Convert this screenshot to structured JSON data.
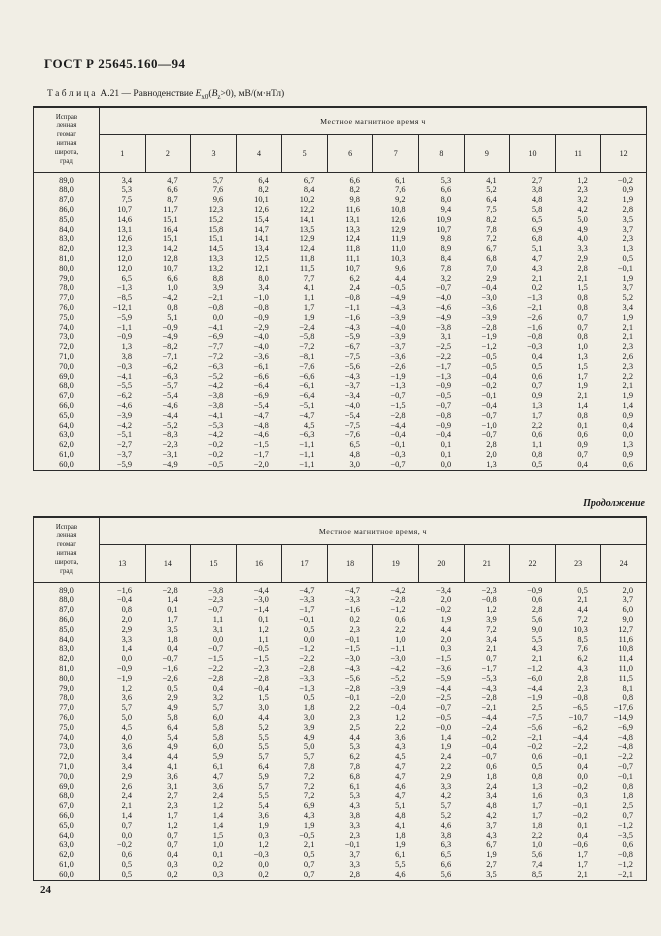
{
  "page": {
    "doc_number": "ГОСТ Р 25645.160—94",
    "page_number": "24",
    "continuation_label": "Продолжение"
  },
  "caption": {
    "word": "Таблица",
    "number": "А.21",
    "dash": "—",
    "prefix": "Равноденствие",
    "e": "E",
    "e_sub": "x0",
    "b_open": "(",
    "b": "B",
    "b_sub": "z",
    "tail": ">0), мВ/(м·нТл)"
  },
  "tables": [
    {
      "row_header_lines": [
        "Исправ",
        "ленная",
        "геомаг",
        "нитная",
        "широта,",
        "град"
      ],
      "group_header": "Местное магнитное время ч",
      "hours": [
        "1",
        "2",
        "3",
        "4",
        "5",
        "6",
        "7",
        "8",
        "9",
        "10",
        "11",
        "12"
      ],
      "rows": [
        {
          "lat": "89,0",
          "values": [
            "3,4",
            "4,7",
            "5,7",
            "6,4",
            "6,7",
            "6,6",
            "6,1",
            "5,3",
            "4,1",
            "2,7",
            "1,2",
            "−0,2"
          ]
        },
        {
          "lat": "88,0",
          "values": [
            "5,3",
            "6,6",
            "7,6",
            "8,2",
            "8,4",
            "8,2",
            "7,6",
            "6,6",
            "5,2",
            "3,8",
            "2,3",
            "0,9"
          ]
        },
        {
          "lat": "87,0",
          "values": [
            "7,5",
            "8,7",
            "9,6",
            "10,1",
            "10,2",
            "9,8",
            "9,2",
            "8,0",
            "6,4",
            "4,8",
            "3,2",
            "1,9"
          ]
        },
        {
          "lat": "86,0",
          "values": [
            "10,7",
            "11,7",
            "12,3",
            "12,6",
            "12,2",
            "11,6",
            "10,8",
            "9,4",
            "7,5",
            "5,8",
            "4,2",
            "2,8"
          ]
        },
        {
          "lat": "85,0",
          "values": [
            "14,6",
            "15,1",
            "15,2",
            "15,4",
            "14,1",
            "13,1",
            "12,6",
            "10,9",
            "8,2",
            "6,5",
            "5,0",
            "3,5"
          ]
        },
        {
          "lat": "84,0",
          "values": [
            "13,1",
            "16,4",
            "15,8",
            "14,7",
            "13,5",
            "13,3",
            "12,9",
            "10,7",
            "7,8",
            "6,9",
            "4,9",
            "3,7"
          ]
        },
        {
          "lat": "83,0",
          "values": [
            "12,6",
            "15,1",
            "15,1",
            "14,1",
            "12,9",
            "12,4",
            "11,9",
            "9,8",
            "7,2",
            "6,8",
            "4,0",
            "2,3"
          ]
        },
        {
          "lat": "82,0",
          "values": [
            "12,3",
            "14,2",
            "14,5",
            "13,4",
            "12,4",
            "11,8",
            "11,0",
            "8,9",
            "6,7",
            "5,1",
            "3,3",
            "1,3"
          ]
        },
        {
          "lat": "81,0",
          "values": [
            "12,0",
            "12,8",
            "13,3",
            "12,5",
            "11,8",
            "11,1",
            "10,3",
            "8,4",
            "6,8",
            "4,7",
            "2,9",
            "0,5"
          ]
        },
        {
          "lat": "80,0",
          "values": [
            "12,0",
            "10,7",
            "13,2",
            "12,1",
            "11,5",
            "10,7",
            "9,6",
            "7,8",
            "7,0",
            "4,3",
            "2,8",
            "−0,1"
          ]
        },
        {
          "lat": "79,0",
          "values": [
            "6,5",
            "6,6",
            "8,8",
            "8,0",
            "7,7",
            "6,2",
            "4,4",
            "3,2",
            "2,9",
            "2,1",
            "2,1",
            "1,9"
          ]
        },
        {
          "lat": "78,0",
          "values": [
            "−1,3",
            "1,0",
            "3,9",
            "3,4",
            "4,1",
            "2,4",
            "−0,5",
            "−0,7",
            "−0,4",
            "0,2",
            "1,5",
            "3,7"
          ]
        },
        {
          "lat": "77,0",
          "values": [
            "−8,5",
            "−4,2",
            "−2,1",
            "−1,0",
            "1,1",
            "−0,8",
            "−4,9",
            "−4,0",
            "−3,0",
            "−1,3",
            "0,8",
            "5,2"
          ]
        },
        {
          "lat": "76,0",
          "values": [
            "−12,1",
            "0,8",
            "−0,8",
            "−0,8",
            "1,7",
            "−1,1",
            "−4,3",
            "−4,6",
            "−3,6",
            "−2,1",
            "0,8",
            "3,4"
          ]
        },
        {
          "lat": "75,0",
          "values": [
            "−5,9",
            "5,1",
            "0,0",
            "−0,9",
            "1,9",
            "−1,6",
            "−3,9",
            "−4,9",
            "−3,9",
            "−2,6",
            "0,7",
            "1,9"
          ]
        },
        {
          "lat": "74,0",
          "values": [
            "−1,1",
            "−0,9",
            "−4,1",
            "−2,9",
            "−2,4",
            "−4,3",
            "−4,0",
            "−3,8",
            "−2,8",
            "−1,6",
            "0,7",
            "2,1"
          ]
        },
        {
          "lat": "73,0",
          "values": [
            "−0,9",
            "−4,9",
            "−6,9",
            "−4,0",
            "−5,8",
            "−5,9",
            "−3,9",
            "3,1",
            "−1,9",
            "−0,8",
            "0,8",
            "2,1"
          ]
        },
        {
          "lat": "72,0",
          "values": [
            "1,3",
            "−8,2",
            "−7,7",
            "−4,0",
            "−7,2",
            "−6,7",
            "−3,7",
            "−2,5",
            "−1,2",
            "−0,3",
            "1,0",
            "2,3"
          ]
        },
        {
          "lat": "71,0",
          "values": [
            "3,8",
            "−7,1",
            "−7,2",
            "−3,6",
            "−8,1",
            "−7,5",
            "−3,6",
            "−2,2",
            "−0,5",
            "0,4",
            "1,3",
            "2,6"
          ]
        },
        {
          "lat": "70,0",
          "values": [
            "−0,3",
            "−6,2",
            "−6,3",
            "−6,1",
            "−7,6",
            "−5,6",
            "−2,6",
            "−1,7",
            "−0,5",
            "0,5",
            "1,5",
            "2,3"
          ]
        },
        {
          "lat": "69,0",
          "values": [
            "−4,1",
            "−6,3",
            "−5,2",
            "−6,6",
            "−6,6",
            "−4,3",
            "−1,9",
            "−1,3",
            "−0,4",
            "0,6",
            "1,7",
            "2,2"
          ]
        },
        {
          "lat": "68,0",
          "values": [
            "−5,5",
            "−5,7",
            "−4,2",
            "−6,4",
            "−6,1",
            "−3,7",
            "−1,3",
            "−0,9",
            "−0,2",
            "0,7",
            "1,9",
            "2,1"
          ]
        },
        {
          "lat": "67,0",
          "values": [
            "−6,2",
            "−5,4",
            "−3,8",
            "−6,9",
            "−6,4",
            "−3,4",
            "−0,7",
            "−0,5",
            "−0,1",
            "0,9",
            "2,1",
            "1,9"
          ]
        },
        {
          "lat": "66,0",
          "values": [
            "−4,6",
            "−4,6",
            "−3,8",
            "−5,4",
            "−5,1",
            "−4,0",
            "−1,5",
            "−0,7",
            "−0,4",
            "1,3",
            "1,4",
            "1,4"
          ]
        },
        {
          "lat": "65,0",
          "values": [
            "−3,9",
            "−4,4",
            "−4,1",
            "−4,7",
            "−4,7",
            "−5,4",
            "−2,8",
            "−0,8",
            "−0,7",
            "1,7",
            "0,8",
            "0,9"
          ]
        },
        {
          "lat": "64,0",
          "values": [
            "−4,2",
            "−5,2",
            "−5,3",
            "−4,8",
            "4,5",
            "−7,5",
            "−4,4",
            "−0,9",
            "−1,0",
            "2,2",
            "0,1",
            "0,4"
          ]
        },
        {
          "lat": "63,0",
          "values": [
            "−5,1",
            "−8,3",
            "−4,2",
            "−4,6",
            "−6,3",
            "−7,6",
            "−0,4",
            "−0,4",
            "−0,7",
            "0,6",
            "0,6",
            "0,0"
          ]
        },
        {
          "lat": "62,0",
          "values": [
            "−2,7",
            "−2,3",
            "−0,2",
            "−1,5",
            "−1,1",
            "6,5",
            "−0,1",
            "0,1",
            "2,8",
            "1,1",
            "0,9",
            "1,3"
          ]
        },
        {
          "lat": "61,0",
          "values": [
            "−3,7",
            "−3,1",
            "−0,2",
            "−1,7",
            "−1,1",
            "4,8",
            "−0,3",
            "0,1",
            "2,0",
            "0,8",
            "0,7",
            "0,9"
          ]
        },
        {
          "lat": "60,0",
          "values": [
            "−5,9",
            "−4,9",
            "−0,5",
            "−2,0",
            "−1,1",
            "3,0",
            "−0,7",
            "0,0",
            "1,3",
            "0,5",
            "0,4",
            "0,6"
          ]
        }
      ]
    },
    {
      "row_header_lines": [
        "Исправ",
        "ленная",
        "геомаг",
        "нитная",
        "широта,",
        "град"
      ],
      "group_header": "Местное магнитное время, ч",
      "hours": [
        "13",
        "14",
        "15",
        "16",
        "17",
        "18",
        "19",
        "20",
        "21",
        "22",
        "23",
        "24"
      ],
      "rows": [
        {
          "lat": "89,0",
          "values": [
            "−1,6",
            "−2,8",
            "−3,8",
            "−4,4",
            "−4,7",
            "−4,7",
            "−4,2",
            "−3,4",
            "−2,3",
            "−0,9",
            "0,5",
            "2,0"
          ]
        },
        {
          "lat": "88,0",
          "values": [
            "−0,4",
            "1,4",
            "−2,3",
            "−3,0",
            "−3,3",
            "−3,3",
            "−2,8",
            "2,0",
            "−0,8",
            "0,6",
            "2,1",
            "3,7"
          ]
        },
        {
          "lat": "87,0",
          "values": [
            "0,8",
            "0,1",
            "−0,7",
            "−1,4",
            "−1,7",
            "−1,6",
            "−1,2",
            "−0,2",
            "1,2",
            "2,8",
            "4,4",
            "6,0"
          ]
        },
        {
          "lat": "86,0",
          "values": [
            "2,0",
            "1,7",
            "1,1",
            "0,1",
            "−0,1",
            "0,2",
            "0,6",
            "1,9",
            "3,9",
            "5,6",
            "7,2",
            "9,0"
          ]
        },
        {
          "lat": "85,0",
          "values": [
            "2,9",
            "3,5",
            "3,1",
            "1,2",
            "0,5",
            "2,3",
            "2,2",
            "4,4",
            "7,2",
            "9,0",
            "10,3",
            "12,7"
          ]
        },
        {
          "lat": "84,0",
          "values": [
            "3,3",
            "1,8",
            "0,0",
            "1,1",
            "0,0",
            "−0,1",
            "1,0",
            "2,0",
            "3,4",
            "5,5",
            "8,5",
            "11,6"
          ]
        },
        {
          "lat": "83,0",
          "values": [
            "1,4",
            "0,4",
            "−0,7",
            "−0,5",
            "−1,2",
            "−1,5",
            "−1,1",
            "0,3",
            "2,1",
            "4,3",
            "7,6",
            "10,8"
          ]
        },
        {
          "lat": "82,0",
          "values": [
            "0,0",
            "−0,7",
            "−1,5",
            "−1,5",
            "−2,2",
            "−3,0",
            "−3,0",
            "−1,5",
            "0,7",
            "2,1",
            "6,2",
            "11,4"
          ]
        },
        {
          "lat": "81,0",
          "values": [
            "−0,9",
            "−1,6",
            "−2,2",
            "−2,3",
            "−2,8",
            "−4,3",
            "−4,2",
            "−3,6",
            "−1,7",
            "−1,2",
            "4,3",
            "11,0"
          ]
        },
        {
          "lat": "80,0",
          "values": [
            "−1,9",
            "−2,6",
            "−2,8",
            "−2,8",
            "−3,3",
            "−5,6",
            "−5,2",
            "−5,9",
            "−5,3",
            "−6,0",
            "2,8",
            "11,5"
          ]
        },
        {
          "lat": "79,0",
          "values": [
            "1,2",
            "0,5",
            "0,4",
            "−0,4",
            "−1,3",
            "−2,8",
            "−3,9",
            "−4,4",
            "−4,3",
            "−4,4",
            "2,3",
            "8,1"
          ]
        },
        {
          "lat": "78,0",
          "values": [
            "3,6",
            "2,9",
            "3,2",
            "1,5",
            "0,5",
            "−0,1",
            "−2,0",
            "−2,5",
            "−2,8",
            "−1,9",
            "−0,8",
            "0,8"
          ]
        },
        {
          "lat": "77,0",
          "values": [
            "5,7",
            "4,9",
            "5,7",
            "3,0",
            "1,8",
            "2,2",
            "−0,4",
            "−0,7",
            "−2,1",
            "2,5",
            "−6,5",
            "−17,6"
          ]
        },
        {
          "lat": "76,0",
          "values": [
            "5,0",
            "5,8",
            "6,0",
            "4,4",
            "3,0",
            "2,3",
            "1,2",
            "−0,5",
            "−4,4",
            "−7,5",
            "−10,7",
            "−14,9"
          ]
        },
        {
          "lat": "75,0",
          "values": [
            "4,5",
            "6,4",
            "5,8",
            "5,2",
            "3,9",
            "2,5",
            "2,2",
            "−0,0",
            "−2,4",
            "−5,6",
            "−6,2",
            "−6,9"
          ]
        },
        {
          "lat": "74,0",
          "values": [
            "4,0",
            "5,4",
            "5,8",
            "5,5",
            "4,9",
            "4,4",
            "3,6",
            "1,4",
            "−0,2",
            "−2,1",
            "−4,4",
            "−4,8"
          ]
        },
        {
          "lat": "73,0",
          "values": [
            "3,6",
            "4,9",
            "6,0",
            "5,5",
            "5,0",
            "5,3",
            "4,3",
            "1,9",
            "−0,4",
            "−0,2",
            "−2,2",
            "−4,8"
          ]
        },
        {
          "lat": "72,0",
          "values": [
            "3,4",
            "4,4",
            "5,9",
            "5,7",
            "5,7",
            "6,2",
            "4,5",
            "2,4",
            "−0,7",
            "0,6",
            "−0,1",
            "−2,2"
          ]
        },
        {
          "lat": "71,0",
          "values": [
            "3,4",
            "4,1",
            "6,1",
            "6,4",
            "7,8",
            "7,8",
            "4,7",
            "2,2",
            "0,6",
            "0,5",
            "0,4",
            "−0,7"
          ]
        },
        {
          "lat": "70,0",
          "values": [
            "2,9",
            "3,6",
            "4,7",
            "5,9",
            "7,2",
            "6,8",
            "4,7",
            "2,9",
            "1,8",
            "0,8",
            "0,0",
            "−0,1"
          ]
        },
        {
          "lat": "69,0",
          "values": [
            "2,6",
            "3,1",
            "3,6",
            "5,7",
            "7,2",
            "6,1",
            "4,6",
            "3,3",
            "2,4",
            "1,3",
            "−0,2",
            "0,8"
          ]
        },
        {
          "lat": "68,0",
          "values": [
            "2,4",
            "2,7",
            "2,4",
            "5,5",
            "7,2",
            "5,3",
            "4,7",
            "4,2",
            "3,4",
            "1,6",
            "0,3",
            "1,8"
          ]
        },
        {
          "lat": "67,0",
          "values": [
            "2,1",
            "2,3",
            "1,2",
            "5,4",
            "6,9",
            "4,3",
            "5,1",
            "5,7",
            "4,8",
            "1,7",
            "−0,1",
            "2,5"
          ]
        },
        {
          "lat": "66,0",
          "values": [
            "1,4",
            "1,7",
            "1,4",
            "3,6",
            "4,3",
            "3,8",
            "4,8",
            "5,2",
            "4,2",
            "1,7",
            "−0,2",
            "0,7"
          ]
        },
        {
          "lat": "65,0",
          "values": [
            "0,7",
            "1,2",
            "1,4",
            "1,9",
            "1,9",
            "3,3",
            "4,1",
            "4,6",
            "3,7",
            "1,8",
            "0,1",
            "−1,2"
          ]
        },
        {
          "lat": "64,0",
          "values": [
            "0,0",
            "0,7",
            "1,5",
            "0,3",
            "−0,5",
            "2,3",
            "1,8",
            "3,8",
            "4,3",
            "2,2",
            "0,4",
            "−3,5"
          ]
        },
        {
          "lat": "63,0",
          "values": [
            "−0,2",
            "0,7",
            "1,0",
            "1,2",
            "2,1",
            "−0,1",
            "1,9",
            "6,3",
            "6,7",
            "1,0",
            "−0,6",
            "0,6"
          ]
        },
        {
          "lat": "62,0",
          "values": [
            "0,6",
            "0,4",
            "0,1",
            "−0,3",
            "0,5",
            "3,7",
            "6,1",
            "6,5",
            "1,9",
            "5,6",
            "1,7",
            "−0,8"
          ]
        },
        {
          "lat": "61,0",
          "values": [
            "0,5",
            "0,3",
            "0,2",
            "0,0",
            "0,7",
            "3,3",
            "5,5",
            "6,6",
            "2,7",
            "7,4",
            "1,7",
            "−1,2"
          ]
        },
        {
          "lat": "60,0",
          "values": [
            "0,5",
            "0,2",
            "0,3",
            "0,2",
            "0,7",
            "2,8",
            "4,6",
            "5,6",
            "3,5",
            "8,5",
            "2,1",
            "−2,1"
          ]
        }
      ]
    }
  ]
}
